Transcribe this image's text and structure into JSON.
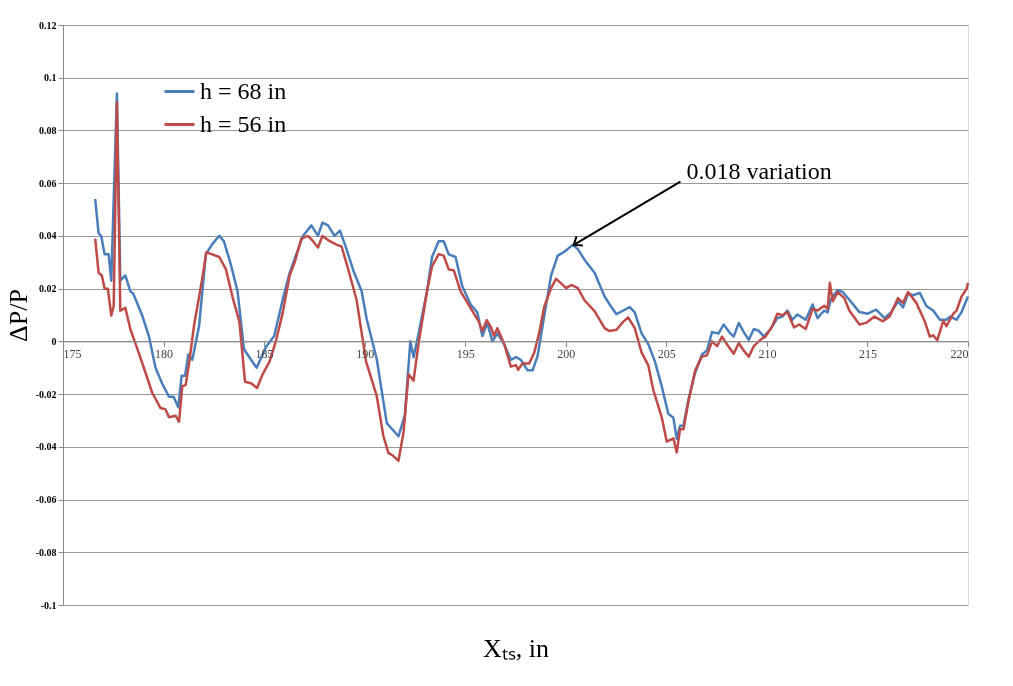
{
  "chart_data": {
    "type": "line",
    "xlabel": "Xₜₛ, in",
    "ylabel": "ΔP/P",
    "xlim": [
      175,
      220
    ],
    "xticks": [
      175,
      180,
      185,
      190,
      195,
      200,
      205,
      210,
      215,
      220
    ],
    "ylim": [
      -0.1,
      0.12
    ],
    "yticks": [
      -0.1,
      -0.08,
      -0.06,
      -0.04,
      -0.02,
      0,
      0.02,
      0.04,
      0.06,
      0.08,
      0.1,
      0.12
    ],
    "grid": "y",
    "legend": "top left",
    "marker": "none",
    "line_style": "solid",
    "annotations": [
      {
        "text": "0.018 variation",
        "x": 200.4,
        "y": 0.0366
      }
    ],
    "series": [
      {
        "name": "h = 68 in",
        "color": "#4a7ebb",
        "x": [
          176.6,
          176.77,
          176.9,
          177.07,
          177.27,
          177.4,
          177.68,
          177.85,
          178.1,
          178.35,
          178.5,
          178.93,
          179.27,
          179.6,
          179.93,
          180.27,
          180.5,
          180.73,
          180.9,
          181.07,
          181.23,
          181.43,
          181.77,
          182.1,
          182.43,
          182.77,
          183.0,
          183.35,
          183.68,
          184.0,
          184.35,
          184.63,
          185.1,
          185.5,
          185.93,
          186.27,
          186.6,
          186.93,
          187.35,
          187.68,
          187.9,
          188.18,
          188.5,
          188.77,
          189.1,
          189.43,
          189.85,
          190.1,
          190.6,
          191.1,
          191.68,
          192.0,
          192.27,
          192.43,
          192.68,
          193.1,
          193.35,
          193.68,
          193.93,
          194.18,
          194.52,
          194.85,
          195.27,
          195.6,
          195.85,
          196.1,
          196.35,
          196.6,
          196.93,
          197.27,
          197.52,
          197.77,
          198.1,
          198.35,
          198.6,
          198.93,
          199.27,
          199.6,
          199.93,
          200.35,
          200.6,
          200.93,
          201.43,
          201.93,
          202.27,
          202.52,
          202.93,
          203.18,
          203.43,
          203.77,
          204.1,
          204.43,
          204.77,
          205.1,
          205.35,
          205.52,
          205.68,
          205.85,
          206.1,
          206.43,
          206.77,
          207.02,
          207.27,
          207.6,
          207.85,
          208.18,
          208.35,
          208.6,
          208.85,
          209.1,
          209.35,
          209.6,
          209.85,
          210.18,
          210.52,
          210.77,
          211.02,
          211.27,
          211.52,
          211.93,
          212.27,
          212.52,
          212.85,
          213.02,
          213.18,
          213.52,
          213.77,
          214.1,
          214.6,
          215.02,
          215.43,
          215.85,
          216.18,
          216.52,
          216.77,
          217.02,
          217.27,
          217.6,
          217.93,
          218.27,
          218.6,
          218.93,
          219.1,
          219.43,
          219.68,
          220
        ],
        "values": [
          0.054,
          0.041,
          0.04,
          0.033,
          0.033,
          0.023,
          0.094,
          0.023,
          0.025,
          0.019,
          0.018,
          0.01,
          0.002,
          -0.01,
          -0.016,
          -0.021,
          -0.021,
          -0.025,
          -0.013,
          -0.013,
          -0.005,
          -0.007,
          0.006,
          0.033,
          0.037,
          0.04,
          0.038,
          0.029,
          0.019,
          -0.003,
          -0.007,
          -0.01,
          -0.002,
          0.002,
          0.016,
          0.026,
          0.033,
          0.04,
          0.044,
          0.04,
          0.045,
          0.044,
          0.04,
          0.042,
          0.035,
          0.027,
          0.019,
          0.0085,
          -0.0067,
          -0.031,
          -0.036,
          -0.028,
          0,
          -0.006,
          0.003,
          0.019,
          0.032,
          0.038,
          0.038,
          0.033,
          0.032,
          0.021,
          0.014,
          0.011,
          0.002,
          0.007,
          0,
          0.003,
          -0.001,
          -0.007,
          -0.006,
          -0.007,
          -0.011,
          -0.011,
          -0.0055,
          0.0097,
          0.025,
          0.0325,
          0.034,
          0.0366,
          0.035,
          0.031,
          0.026,
          0.017,
          0.013,
          0.0103,
          0.012,
          0.013,
          0.011,
          0.003,
          -0.001,
          -0.0076,
          -0.017,
          -0.0275,
          -0.029,
          -0.037,
          -0.032,
          -0.032,
          -0.022,
          -0.012,
          -0.005,
          -0.0035,
          0.0035,
          0.003,
          0.0064,
          0.003,
          0.0018,
          0.007,
          0.0035,
          0.0006,
          0.0047,
          0.004,
          0.0018,
          0.0047,
          0.0088,
          0.0094,
          0.0117,
          0.0082,
          0.0102,
          0.0082,
          0.014,
          0.0088,
          0.0117,
          0.011,
          0.016,
          0.0195,
          0.0187,
          0.0158,
          0.0111,
          0.0105,
          0.012,
          0.0088,
          0.0111,
          0.0152,
          0.0129,
          0.0181,
          0.0175,
          0.0184,
          0.0134,
          0.0117,
          0.0082,
          0.0082,
          0.0094,
          0.0082,
          0.0111,
          0.017
        ]
      },
      {
        "name": "h = 56 in",
        "color": "#be4b48",
        "x": [
          176.6,
          176.77,
          176.93,
          177.07,
          177.23,
          177.4,
          177.52,
          177.68,
          177.85,
          178.1,
          178.35,
          178.68,
          179.02,
          179.43,
          179.85,
          180.1,
          180.27,
          180.6,
          180.77,
          180.93,
          181.1,
          181.27,
          181.52,
          181.85,
          182.13,
          182.35,
          182.77,
          183.1,
          183.43,
          183.77,
          184.05,
          184.35,
          184.65,
          184.93,
          185.27,
          185.6,
          185.93,
          186.27,
          186.52,
          186.85,
          187.18,
          187.43,
          187.68,
          187.9,
          188.27,
          188.6,
          188.85,
          189.18,
          189.6,
          190.07,
          190.6,
          190.93,
          191.18,
          191.43,
          191.68,
          191.93,
          192.18,
          192.43,
          192.68,
          193.1,
          193.35,
          193.68,
          193.93,
          194.18,
          194.43,
          194.77,
          195.27,
          195.68,
          195.85,
          196.07,
          196.27,
          196.43,
          196.6,
          196.93,
          197.27,
          197.52,
          197.63,
          197.85,
          198.18,
          198.43,
          198.68,
          198.93,
          199.27,
          199.52,
          199.77,
          200.02,
          200.27,
          200.6,
          200.93,
          201.43,
          201.93,
          202.18,
          202.52,
          202.85,
          203.1,
          203.43,
          203.77,
          204.1,
          204.35,
          204.77,
          205.02,
          205.35,
          205.52,
          205.68,
          205.85,
          206.1,
          206.43,
          206.77,
          207.02,
          207.27,
          207.52,
          207.77,
          208.02,
          208.35,
          208.6,
          208.85,
          209.1,
          209.35,
          209.68,
          209.93,
          210.27,
          210.52,
          210.77,
          211.02,
          211.35,
          211.6,
          211.93,
          212.27,
          212.52,
          212.85,
          213.02,
          213.13,
          213.27,
          213.52,
          213.85,
          214.1,
          214.6,
          214.93,
          215.35,
          215.77,
          216.1,
          216.52,
          216.77,
          217.02,
          217.43,
          217.85,
          218.1,
          218.27,
          218.47,
          218.77,
          218.93,
          219.27,
          219.43,
          219.68,
          219.93,
          220
        ],
        "values": [
          0.039,
          0.026,
          0.025,
          0.02,
          0.02,
          0.0098,
          0.0133,
          0.0905,
          0.0116,
          0.0127,
          0.0046,
          -0.0025,
          -0.01,
          -0.0194,
          -0.0253,
          -0.0258,
          -0.0288,
          -0.0282,
          -0.0305,
          -0.0171,
          -0.0165,
          -0.0083,
          0.0063,
          0.0204,
          0.0338,
          0.0332,
          0.032,
          0.0274,
          0.0168,
          0.0075,
          -0.0153,
          -0.0159,
          -0.0177,
          -0.0124,
          -0.0077,
          0.0005,
          0.011,
          0.025,
          0.03,
          0.039,
          0.04,
          0.038,
          0.0356,
          0.04,
          0.038,
          0.0367,
          0.036,
          0.0274,
          0.0157,
          -0.0077,
          -0.0207,
          -0.0359,
          -0.0423,
          -0.0435,
          -0.0453,
          -0.0347,
          -0.0125,
          -0.0149,
          -0.0008,
          0.019,
          0.0284,
          0.0331,
          0.0325,
          0.0273,
          0.027,
          0.019,
          0.0126,
          0.0074,
          0.0039,
          0.008,
          0.0056,
          0.0021,
          0.005,
          -0.0008,
          -0.0096,
          -0.009,
          -0.0108,
          -0.0084,
          -0.0084,
          -0.0043,
          0.0033,
          0.0132,
          0.0202,
          0.0237,
          0.022,
          0.0202,
          0.0214,
          0.0202,
          0.0156,
          0.0115,
          0.005,
          0.0039,
          0.0044,
          0.0074,
          0.0091,
          0.005,
          -0.0043,
          -0.009,
          -0.0184,
          -0.0287,
          -0.038,
          -0.0368,
          -0.0421,
          -0.0333,
          -0.0333,
          -0.0228,
          -0.0111,
          -0.0058,
          -0.0053,
          0,
          -0.0018,
          0.0018,
          -0.0012,
          -0.0047,
          -0.0006,
          -0.0035,
          -0.0058,
          -0.0018,
          0.0006,
          0.0018,
          0.0058,
          0.0105,
          0.0099,
          0.0111,
          0.0053,
          0.0064,
          0.0047,
          0.0123,
          0.0117,
          0.0135,
          0.0123,
          0.0222,
          0.0152,
          0.0187,
          0.0164,
          0.0117,
          0.0064,
          0.007,
          0.0094,
          0.0076,
          0.0094,
          0.0164,
          0.0146,
          0.0187,
          0.0146,
          0.0076,
          0.0018,
          0.0023,
          0.0004,
          0.0078,
          0.0058,
          0.0105,
          0.0117,
          0.017,
          0.0199,
          0.0222
        ]
      }
    ]
  }
}
